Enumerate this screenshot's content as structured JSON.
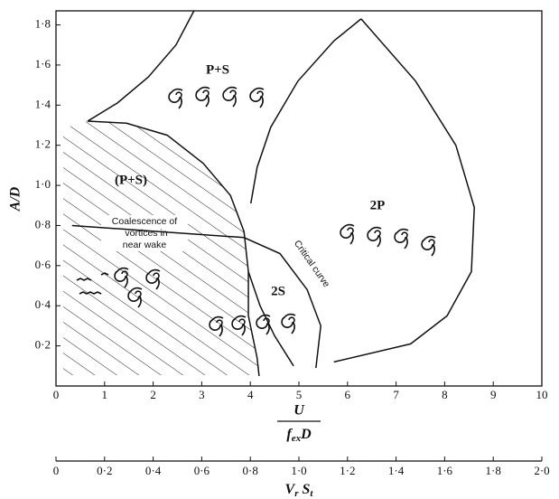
{
  "chart_data": {
    "type": "line",
    "ylabel": "A/D",
    "xlabel": {
      "numerator": "U",
      "denominator": {
        "base": "f",
        "sub": "ex",
        "rest": "D"
      }
    },
    "x2label": {
      "v": "V",
      "v_sub": "r",
      "s": "S",
      "s_sub": "t"
    },
    "xlim": [
      0,
      10
    ],
    "xticks": [
      0,
      1,
      2,
      3,
      4,
      5,
      6,
      7,
      8,
      9,
      10
    ],
    "ylim": [
      0,
      1.87
    ],
    "yticks": [
      {
        "value": 0.2,
        "label": "0·2"
      },
      {
        "value": 0.4,
        "label": "0·4"
      },
      {
        "value": 0.6,
        "label": "0·6"
      },
      {
        "value": 0.8,
        "label": "0·8"
      },
      {
        "value": 1.0,
        "label": "1·0"
      },
      {
        "value": 1.2,
        "label": "1·2"
      },
      {
        "value": 1.4,
        "label": "1·4"
      },
      {
        "value": 1.6,
        "label": "1·6"
      },
      {
        "value": 1.8,
        "label": "1·8"
      }
    ],
    "x2lim": [
      0,
      2.0
    ],
    "x2ticks": [
      0,
      {
        "value": 0.2,
        "label": "0·2"
      },
      {
        "value": 0.4,
        "label": "0·4"
      },
      {
        "value": 0.6,
        "label": "0·6"
      },
      {
        "value": 0.8,
        "label": "0·8"
      },
      {
        "value": 1.0,
        "label": "1·0"
      },
      {
        "value": 1.2,
        "label": "1·2"
      },
      {
        "value": 1.4,
        "label": "1·4"
      },
      {
        "value": 1.6,
        "label": "1·6"
      },
      {
        "value": 1.8,
        "label": "1·8"
      },
      {
        "value": 2.0,
        "label": "2·0"
      }
    ],
    "annotations": {
      "ps": "P+S",
      "ps_paren": "(P+S)",
      "two_p": "2P",
      "two_s": "2S",
      "coalescence": [
        "Coalescence of",
        "vortices in",
        "near wake"
      ],
      "critical": "Critical curve"
    },
    "series": [
      {
        "color": "#111111",
        "x": [
          0.65,
          1.45,
          2.29,
          3.03,
          3.59,
          3.87,
          3.96,
          3.96,
          4.14,
          4.18
        ],
        "values": [
          1.32,
          1.31,
          1.25,
          1.11,
          0.95,
          0.77,
          0.57,
          0.35,
          0.14,
          0.05
        ]
      },
      {
        "color": "#111111",
        "x": [
          0.65,
          1.26,
          1.9,
          2.47,
          2.84
        ],
        "values": [
          1.32,
          1.41,
          1.54,
          1.7,
          1.87
        ]
      },
      {
        "color": "#111111",
        "x": [
          6.28,
          5.72,
          4.98,
          4.42,
          4.14,
          4.01
        ],
        "values": [
          1.83,
          1.72,
          1.52,
          1.29,
          1.09,
          0.91
        ]
      },
      {
        "color": "#111111",
        "x": [
          6.28,
          7.4,
          8.23,
          8.61,
          8.55,
          8.05,
          7.3,
          5.72
        ],
        "values": [
          1.83,
          1.52,
          1.2,
          0.89,
          0.57,
          0.35,
          0.21,
          0.12
        ]
      },
      {
        "color": "#111111",
        "x": [
          0.33,
          3.87,
          4.61,
          5.17,
          5.45,
          5.35
        ],
        "values": [
          0.8,
          0.74,
          0.66,
          0.48,
          0.3,
          0.09
        ]
      },
      {
        "color": "#111111",
        "x": [
          3.96,
          4.2,
          4.5,
          4.89
        ],
        "values": [
          0.57,
          0.4,
          0.25,
          0.1
        ]
      }
    ]
  }
}
